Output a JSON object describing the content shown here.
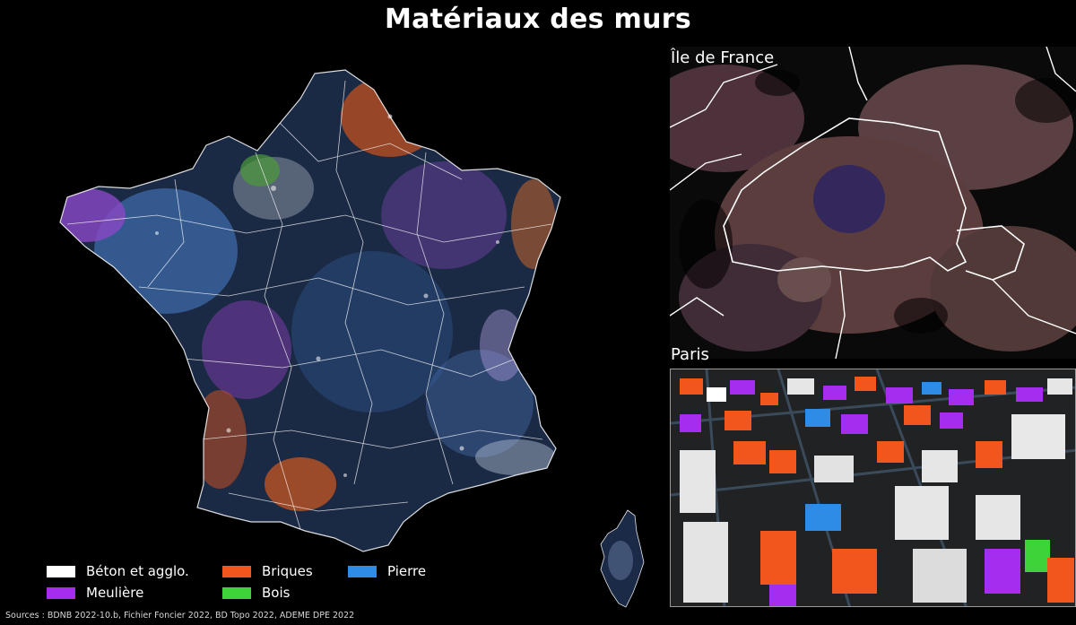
{
  "title": "Matériaux des murs",
  "insets": {
    "idf_label": "Île de France",
    "paris_label": "Paris"
  },
  "legend": {
    "items": [
      {
        "label": "Béton et agglo.",
        "color": "#ffffff"
      },
      {
        "label": "Briques",
        "color": "#f2561d"
      },
      {
        "label": "Pierre",
        "color": "#2e8be6"
      },
      {
        "label": "Meulière",
        "color": "#a42df0"
      },
      {
        "label": "Bois",
        "color": "#3fd33a"
      }
    ]
  },
  "sources": "Sources : BDNB 2022-10.b, Fichier Foncier 2022, BD Topo 2022, ADEME DPE 2022",
  "colors": {
    "background": "#000000",
    "beton": "#ffffff",
    "briques": "#f2561d",
    "pierre": "#2e8be6",
    "meuliere": "#a42df0",
    "bois": "#3fd33a",
    "boundary": "#ffffff"
  }
}
